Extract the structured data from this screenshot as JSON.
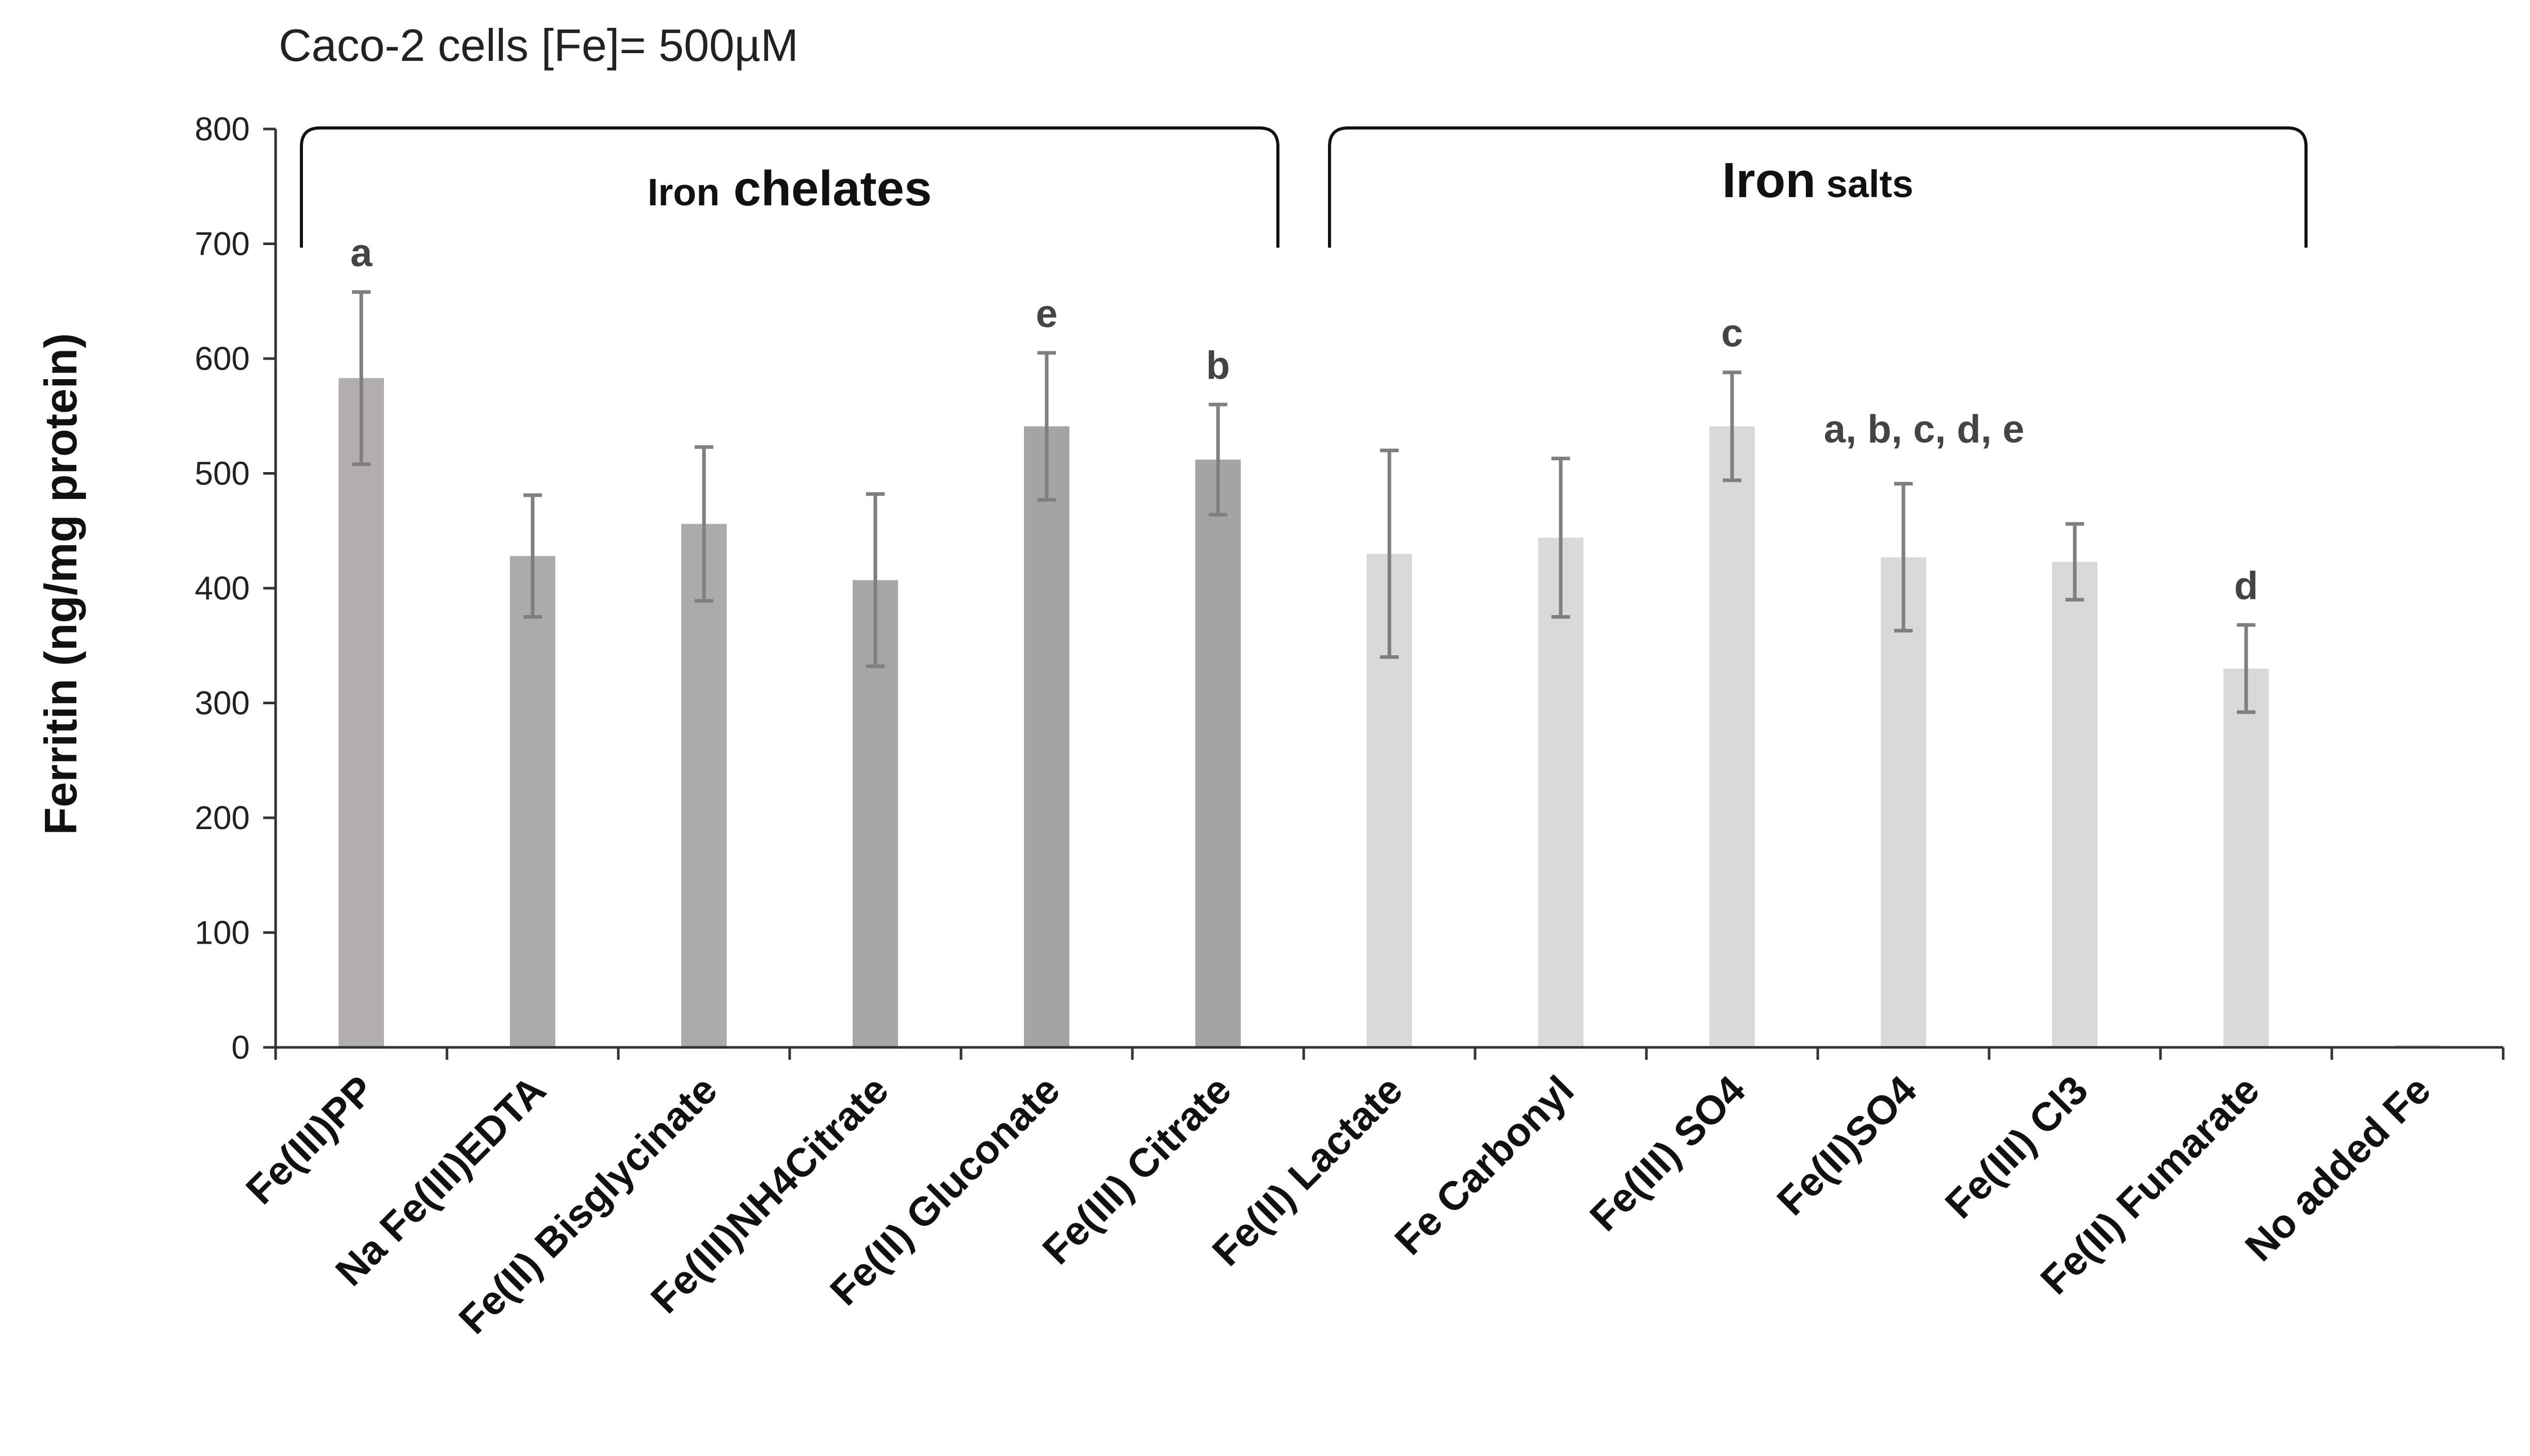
{
  "chart_data": {
    "type": "bar",
    "title": "Caco-2 cells [Fe]= 500µM",
    "xlabel": "",
    "ylabel": "Ferritin (ng/mg protein)",
    "ylim": [
      0,
      800
    ],
    "yticks": [
      0,
      100,
      200,
      300,
      400,
      500,
      600,
      700,
      800
    ],
    "grid": false,
    "categories": [
      "Fe(III)PP",
      "Na Fe(III)EDTA",
      "Fe(II) Bisglycinate",
      "Fe(III)NH4Citrate",
      "Fe(II) Gluconate",
      "Fe(III) Citrate",
      "Fe(II) Lactate",
      "Fe Carbonyl",
      "Fe(III) SO4",
      "Fe(II)SO4",
      "Fe(III) Cl3",
      "Fe(II) Fumarate",
      "No added Fe"
    ],
    "values": [
      583,
      428,
      456,
      407,
      541,
      512,
      430,
      444,
      541,
      427,
      423,
      330,
      2
    ],
    "errors": [
      75,
      53,
      67,
      75,
      64,
      48,
      90,
      69,
      47,
      64,
      33,
      38,
      0
    ],
    "colors": [
      "#b2aeae",
      "#acaaaa",
      "#acaaaa",
      "#a6a6a6",
      "#a4a4a4",
      "#a4a4a4",
      "#d9d9d9",
      "#d9d9d9",
      "#d9d9d9",
      "#d9d9d9",
      "#d9d9d9",
      "#d9d9d9",
      "#d9d9d9"
    ],
    "error_color": "#7f7f7f",
    "significance_letters": [
      {
        "category": "Fe(III)PP",
        "text": "a"
      },
      {
        "category": "Fe(II) Gluconate",
        "text": "e"
      },
      {
        "category": "Fe(III) Citrate",
        "text": "b"
      },
      {
        "category": "Fe(III) SO4",
        "text": "c"
      },
      {
        "category": "Fe(II)SO4",
        "text": "a, b, c, d, e"
      },
      {
        "category": "Fe(II) Fumarate",
        "text": "d"
      }
    ],
    "groups": [
      {
        "prefix": "Iron",
        "label": "chelates",
        "from": "Fe(III)PP",
        "to": "Fe(III) Citrate"
      },
      {
        "prefix": "Iron",
        "label": "salts",
        "from": "Fe(II) Lactate",
        "to": "Fe(II) Fumarate"
      }
    ]
  }
}
